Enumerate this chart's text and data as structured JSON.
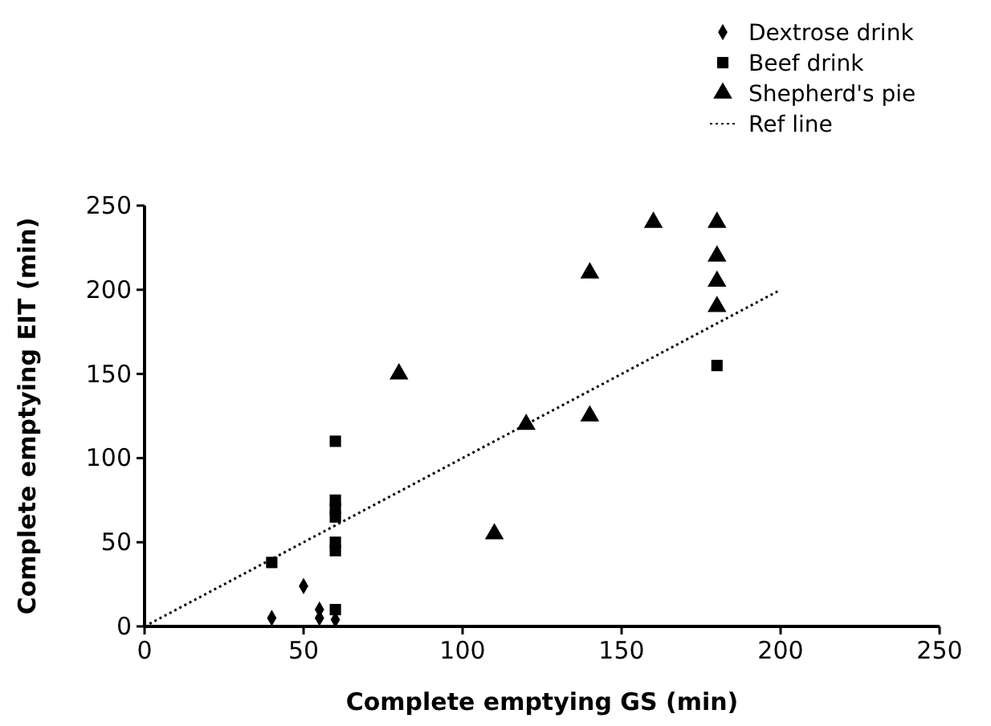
{
  "chart_data": {
    "type": "scatter",
    "xlabel": "Complete emptying GS (min)",
    "ylabel": "Complete emptying EIT (min)",
    "xlim": [
      0,
      250
    ],
    "ylim": [
      0,
      250
    ],
    "xticks": [
      0,
      50,
      100,
      150,
      200,
      250
    ],
    "yticks": [
      0,
      50,
      100,
      150,
      200,
      250
    ],
    "legend": "top right",
    "grid": false,
    "series": [
      {
        "name": "Dextrose drink",
        "color": "#000000",
        "marker": "diamond",
        "x": [
          40,
          50,
          55,
          55,
          60
        ],
        "values": [
          5,
          24,
          10,
          5,
          4
        ]
      },
      {
        "name": "Beef drink",
        "color": "#000000",
        "marker": "square",
        "x": [
          40,
          60,
          60,
          60,
          60,
          60,
          60,
          60,
          180
        ],
        "values": [
          38,
          110,
          75,
          70,
          65,
          50,
          45,
          10,
          155
        ]
      },
      {
        "name": "Shepherd's pie",
        "color": "#000000",
        "marker": "triangle",
        "x": [
          80,
          110,
          120,
          140,
          140,
          160,
          180,
          180,
          180,
          180
        ],
        "values": [
          150,
          55,
          120,
          210,
          125,
          240,
          240,
          220,
          205,
          190
        ]
      },
      {
        "name": "Ref line",
        "type": "line",
        "color": "#000000",
        "line_style": "dotted",
        "marker": "none",
        "x": [
          0,
          200
        ],
        "values": [
          0,
          200
        ]
      }
    ]
  }
}
